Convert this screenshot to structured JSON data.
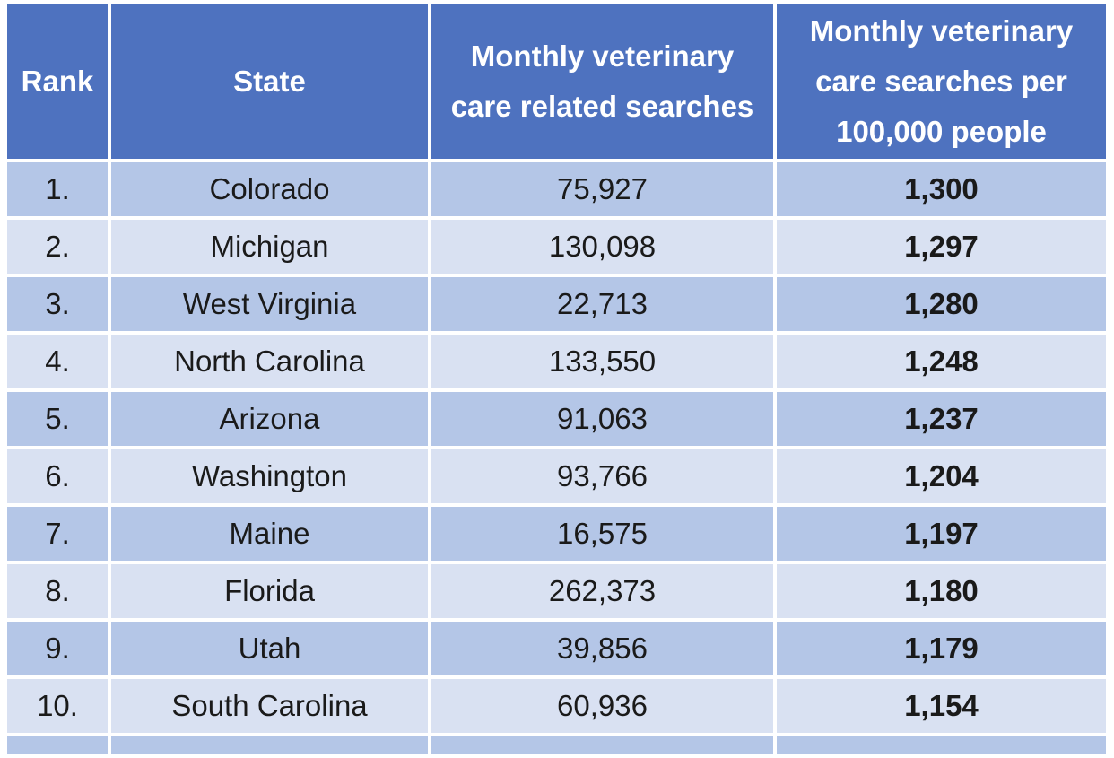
{
  "table": {
    "header": [
      "Rank",
      "State",
      "Monthly veterinary care related searches",
      "Monthly veterinary care searches per 100,000 people"
    ],
    "rows": [
      [
        "1.",
        "Colorado",
        "75,927",
        "1,300"
      ],
      [
        "2.",
        "Michigan",
        "130,098",
        "1,297"
      ],
      [
        "3.",
        "West Virginia",
        "22,713",
        "1,280"
      ],
      [
        "4.",
        "North Carolina",
        "133,550",
        "1,248"
      ],
      [
        "5.",
        "Arizona",
        "91,063",
        "1,237"
      ],
      [
        "6.",
        "Washington",
        "93,766",
        "1,204"
      ],
      [
        "7.",
        "Maine",
        "16,575",
        "1,197"
      ],
      [
        "8.",
        "Florida",
        "262,373",
        "1,180"
      ],
      [
        "9.",
        "Utah",
        "39,856",
        "1,179"
      ],
      [
        "10.",
        "South Carolina",
        "60,936",
        "1,154"
      ]
    ]
  }
}
